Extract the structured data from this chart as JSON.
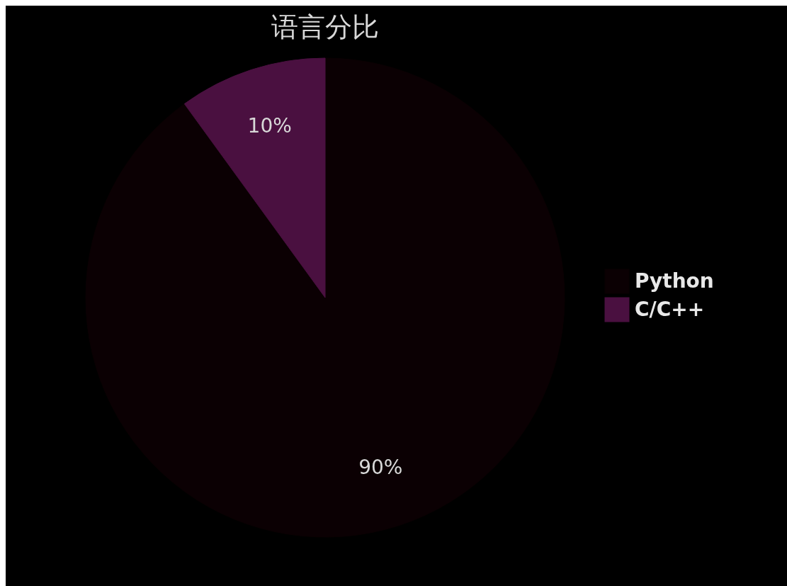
{
  "chart_data": {
    "type": "pie",
    "title": "语言分比",
    "categories": [
      "Python",
      "C/C++"
    ],
    "values": [
      90,
      10
    ],
    "colors": [
      "#0b0003",
      "#4a1040"
    ],
    "value_labels": [
      "90%",
      "10%"
    ],
    "legend": "right"
  }
}
